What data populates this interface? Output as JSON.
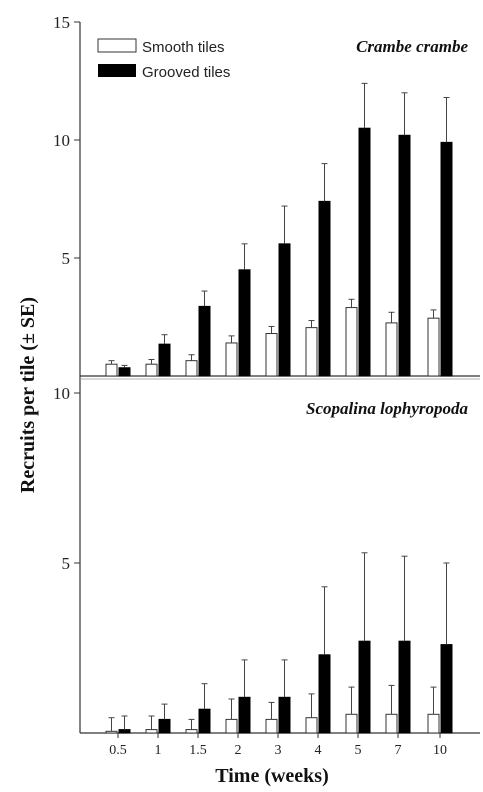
{
  "chart_data": {
    "type": "bar",
    "xlabel": "Time (weeks)",
    "ylabel": "Recruits per tile (± SE)",
    "categories": [
      "0.5",
      "1",
      "1.5",
      "2",
      "3",
      "4",
      "5",
      "7",
      "10"
    ],
    "legend": {
      "placement": "top-left",
      "entries": [
        "Smooth tiles",
        "Grooved tiles"
      ]
    },
    "colors": {
      "smooth": "#ffffff",
      "grooved": "#000000",
      "axis": "#333333"
    },
    "panels": [
      {
        "title": "Crambe crambe",
        "ylim": [
          0,
          15
        ],
        "yticks": [
          "15",
          "10",
          "5"
        ],
        "series": [
          {
            "name": "Smooth tiles",
            "values": [
              0.5,
              0.5,
              0.65,
              1.4,
              1.8,
              2.05,
              2.9,
              2.25,
              2.45
            ],
            "errors": [
              0.15,
              0.2,
              0.25,
              0.3,
              0.3,
              0.3,
              0.35,
              0.45,
              0.35
            ]
          },
          {
            "name": "Grooved tiles",
            "values": [
              0.35,
              1.35,
              2.95,
              4.5,
              5.6,
              7.4,
              10.5,
              10.2,
              9.9
            ],
            "errors": [
              0.1,
              0.4,
              0.65,
              1.1,
              1.6,
              1.6,
              1.9,
              1.8,
              1.9
            ]
          }
        ]
      },
      {
        "title": "Scopalina lophyropoda",
        "ylim": [
          0,
          10
        ],
        "yticks": [
          "10",
          "5"
        ],
        "series": [
          {
            "name": "Smooth tiles",
            "values": [
              0.05,
              0.1,
              0.1,
              0.4,
              0.4,
              0.45,
              0.55,
              0.55,
              0.55
            ],
            "errors": [
              0.4,
              0.4,
              0.3,
              0.6,
              0.5,
              0.7,
              0.8,
              0.85,
              0.8
            ]
          },
          {
            "name": "Grooved tiles",
            "values": [
              0.1,
              0.4,
              0.7,
              1.05,
              1.05,
              2.3,
              2.7,
              2.7,
              2.6
            ],
            "errors": [
              0.4,
              0.45,
              0.75,
              1.1,
              1.1,
              2.0,
              2.6,
              2.5,
              2.4
            ]
          }
        ]
      }
    ]
  }
}
